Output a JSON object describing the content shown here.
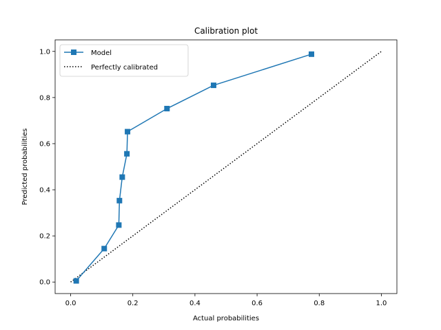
{
  "chart_data": {
    "type": "line",
    "title": "Calibration plot",
    "xlabel": "Actual probabilities",
    "ylabel": "Predicted probabilities",
    "xlim": [
      -0.05,
      1.05
    ],
    "ylim": [
      -0.05,
      1.05
    ],
    "xticks": [
      0.0,
      0.2,
      0.4,
      0.6,
      0.8,
      1.0
    ],
    "yticks": [
      0.0,
      0.2,
      0.4,
      0.6,
      0.8,
      1.0
    ],
    "xtick_labels": [
      "0.0",
      "0.2",
      "0.4",
      "0.6",
      "0.8",
      "1.0"
    ],
    "ytick_labels": [
      "0.0",
      "0.2",
      "0.4",
      "0.6",
      "0.8",
      "1.0"
    ],
    "grid": false,
    "legend_position": "upper-left",
    "series": [
      {
        "name": "Model",
        "style": "solid line with square markers",
        "color": "#1f77b4",
        "x": [
          0.018,
          0.108,
          0.155,
          0.157,
          0.166,
          0.181,
          0.183,
          0.31,
          0.46,
          0.775
        ],
        "y": [
          0.005,
          0.145,
          0.247,
          0.353,
          0.455,
          0.556,
          0.652,
          0.752,
          0.853,
          0.988
        ]
      },
      {
        "name": "Perfectly calibrated",
        "style": "dotted line",
        "color": "#000000",
        "x": [
          0.0,
          1.0
        ],
        "y": [
          0.0,
          1.0
        ]
      }
    ]
  }
}
